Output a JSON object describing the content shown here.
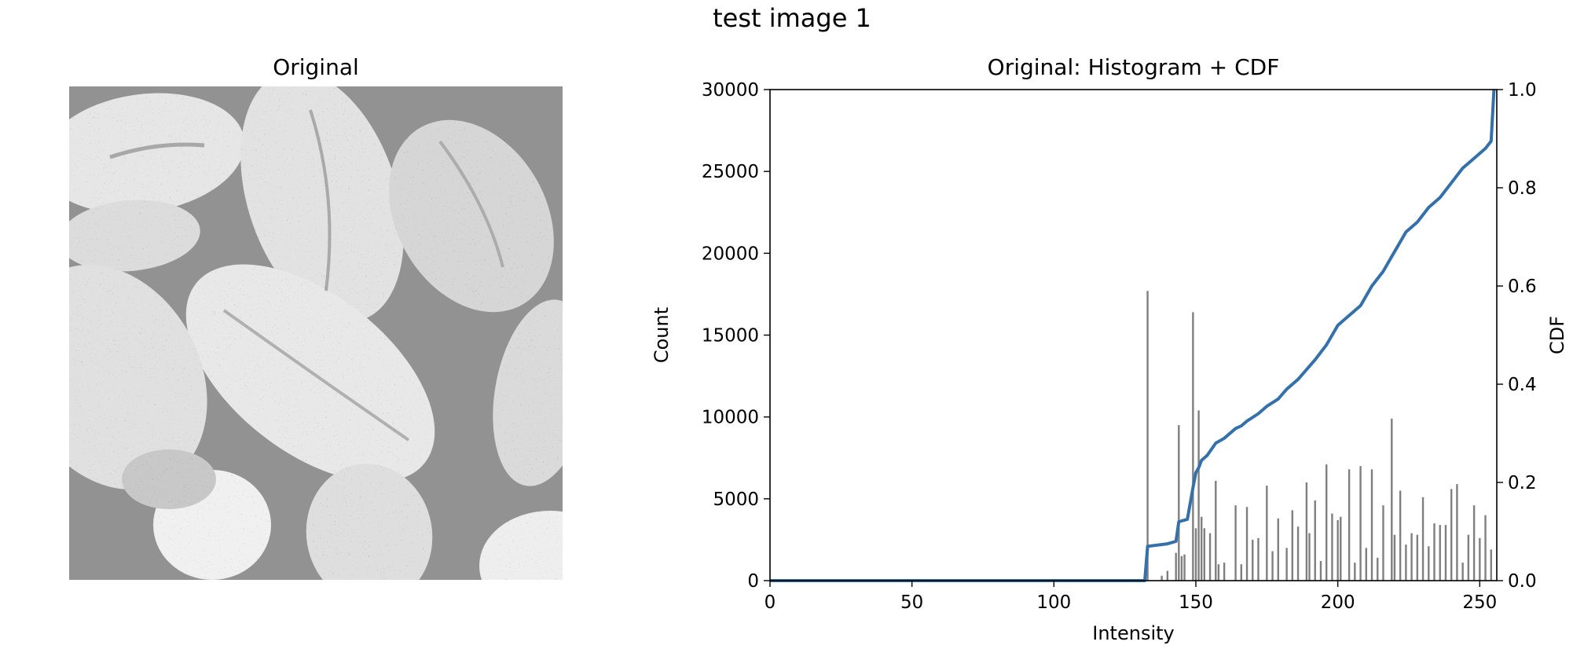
{
  "suptitle": "test image 1",
  "left_panel": {
    "title": "Original",
    "image_description": "grayscale scanning electron micrograph of pollen grains"
  },
  "chart_data": {
    "type": "bar",
    "title": "Original: Histogram + CDF",
    "xlabel": "Intensity",
    "ylabel": "Count",
    "y2label": "CDF",
    "xlim": [
      0,
      256
    ],
    "ylim": [
      0,
      30000
    ],
    "y2lim": [
      0,
      1
    ],
    "xticks": [
      0,
      50,
      100,
      150,
      200,
      250
    ],
    "yticks": [
      0,
      5000,
      10000,
      15000,
      20000,
      25000,
      30000
    ],
    "y2ticks": [
      0.0,
      0.2,
      0.4,
      0.6,
      0.8,
      1.0
    ],
    "series": [
      {
        "name": "Histogram",
        "color": "#7f7f7f",
        "x": [
          133,
          138,
          140,
          143,
          144,
          145,
          146,
          149,
          150,
          151,
          152,
          153,
          155,
          157,
          158,
          160,
          164,
          166,
          168,
          170,
          172,
          175,
          177,
          179,
          182,
          184,
          186,
          189,
          190,
          192,
          194,
          196,
          198,
          200,
          201,
          204,
          206,
          208,
          210,
          212,
          214,
          216,
          219,
          220,
          222,
          224,
          226,
          228,
          230,
          232,
          234,
          236,
          238,
          240,
          242,
          244,
          246,
          248,
          250,
          252,
          254
        ],
        "values": [
          17700,
          300,
          600,
          1700,
          9500,
          1500,
          1600,
          16400,
          3200,
          10400,
          3900,
          3200,
          2900,
          6100,
          1000,
          1100,
          4600,
          1000,
          4500,
          2500,
          2600,
          5800,
          1800,
          3800,
          2000,
          4300,
          3300,
          6000,
          2900,
          4900,
          1200,
          7100,
          4100,
          3700,
          3900,
          6800,
          1100,
          7000,
          2000,
          6800,
          1400,
          4600,
          9900,
          2800,
          5500,
          2200,
          2900,
          2800,
          5100,
          2100,
          3500,
          3400,
          3400,
          5600,
          5900,
          1100,
          2800,
          4600,
          2600,
          4000,
          1900
        ]
      },
      {
        "name": "CDF",
        "color": "#3470aa",
        "x": [
          0,
          132,
          133,
          140,
          143,
          144,
          147,
          149,
          150,
          151,
          152,
          154,
          157,
          160,
          164,
          166,
          168,
          172,
          175,
          179,
          182,
          186,
          189,
          192,
          196,
          200,
          204,
          208,
          212,
          216,
          220,
          224,
          228,
          232,
          236,
          240,
          244,
          248,
          252,
          254,
          255
        ],
        "values": [
          0.0,
          0.0,
          0.07,
          0.075,
          0.08,
          0.12,
          0.125,
          0.19,
          0.22,
          0.23,
          0.245,
          0.255,
          0.28,
          0.29,
          0.31,
          0.315,
          0.325,
          0.34,
          0.355,
          0.37,
          0.39,
          0.41,
          0.43,
          0.45,
          0.48,
          0.52,
          0.54,
          0.56,
          0.6,
          0.63,
          0.67,
          0.71,
          0.73,
          0.76,
          0.78,
          0.81,
          0.84,
          0.86,
          0.88,
          0.895,
          1.0
        ]
      }
    ]
  }
}
